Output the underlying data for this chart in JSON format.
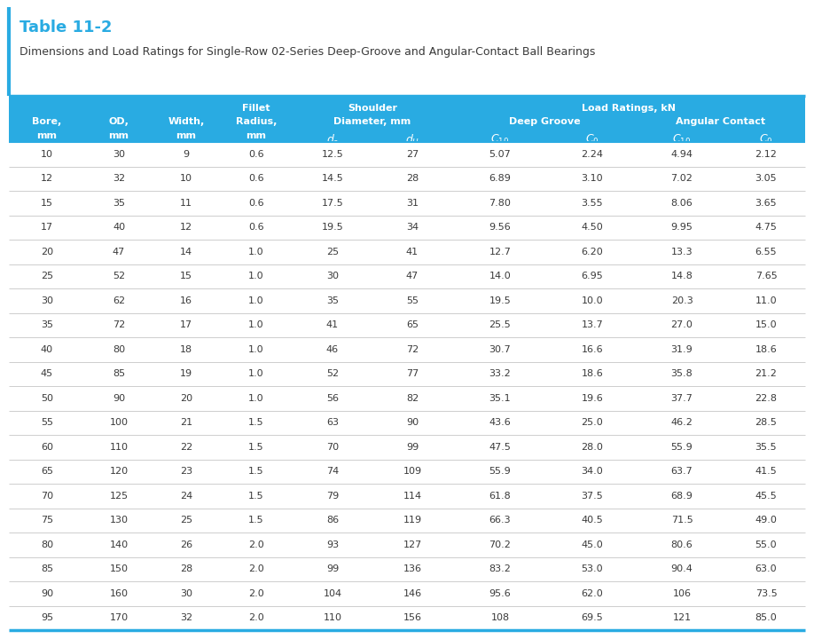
{
  "title": "Table 11-2",
  "subtitle": "Dimensions and Load Ratings for Single-Row 02-Series Deep-Groove and Angular-Contact Ball Bearings",
  "header_bg": "#29ABE2",
  "header_text_color": "#FFFFFF",
  "title_color": "#29ABE2",
  "subtitle_color": "#3A3A3A",
  "data_text_color": "#3A3A3A",
  "border_color": "#29ABE2",
  "row_strings": [
    [
      "10",
      "30",
      "9",
      "0.6",
      "12.5",
      "27",
      "5.07",
      "2.24",
      "4.94",
      "2.12"
    ],
    [
      "12",
      "32",
      "10",
      "0.6",
      "14.5",
      "28",
      "6.89",
      "3.10",
      "7.02",
      "3.05"
    ],
    [
      "15",
      "35",
      "11",
      "0.6",
      "17.5",
      "31",
      "7.80",
      "3.55",
      "8.06",
      "3.65"
    ],
    [
      "17",
      "40",
      "12",
      "0.6",
      "19.5",
      "34",
      "9.56",
      "4.50",
      "9.95",
      "4.75"
    ],
    [
      "20",
      "47",
      "14",
      "1.0",
      "25",
      "41",
      "12.7",
      "6.20",
      "13.3",
      "6.55"
    ],
    [
      "25",
      "52",
      "15",
      "1.0",
      "30",
      "47",
      "14.0",
      "6.95",
      "14.8",
      "7.65"
    ],
    [
      "30",
      "62",
      "16",
      "1.0",
      "35",
      "55",
      "19.5",
      "10.0",
      "20.3",
      "11.0"
    ],
    [
      "35",
      "72",
      "17",
      "1.0",
      "41",
      "65",
      "25.5",
      "13.7",
      "27.0",
      "15.0"
    ],
    [
      "40",
      "80",
      "18",
      "1.0",
      "46",
      "72",
      "30.7",
      "16.6",
      "31.9",
      "18.6"
    ],
    [
      "45",
      "85",
      "19",
      "1.0",
      "52",
      "77",
      "33.2",
      "18.6",
      "35.8",
      "21.2"
    ],
    [
      "50",
      "90",
      "20",
      "1.0",
      "56",
      "82",
      "35.1",
      "19.6",
      "37.7",
      "22.8"
    ],
    [
      "55",
      "100",
      "21",
      "1.5",
      "63",
      "90",
      "43.6",
      "25.0",
      "46.2",
      "28.5"
    ],
    [
      "60",
      "110",
      "22",
      "1.5",
      "70",
      "99",
      "47.5",
      "28.0",
      "55.9",
      "35.5"
    ],
    [
      "65",
      "120",
      "23",
      "1.5",
      "74",
      "109",
      "55.9",
      "34.0",
      "63.7",
      "41.5"
    ],
    [
      "70",
      "125",
      "24",
      "1.5",
      "79",
      "114",
      "61.8",
      "37.5",
      "68.9",
      "45.5"
    ],
    [
      "75",
      "130",
      "25",
      "1.5",
      "86",
      "119",
      "66.3",
      "40.5",
      "71.5",
      "49.0"
    ],
    [
      "80",
      "140",
      "26",
      "2.0",
      "93",
      "127",
      "70.2",
      "45.0",
      "80.6",
      "55.0"
    ],
    [
      "85",
      "150",
      "28",
      "2.0",
      "99",
      "136",
      "83.2",
      "53.0",
      "90.4",
      "63.0"
    ],
    [
      "90",
      "160",
      "30",
      "2.0",
      "104",
      "146",
      "95.6",
      "62.0",
      "106",
      "73.5"
    ],
    [
      "95",
      "170",
      "32",
      "2.0",
      "110",
      "156",
      "108",
      "69.5",
      "121",
      "85.0"
    ]
  ]
}
